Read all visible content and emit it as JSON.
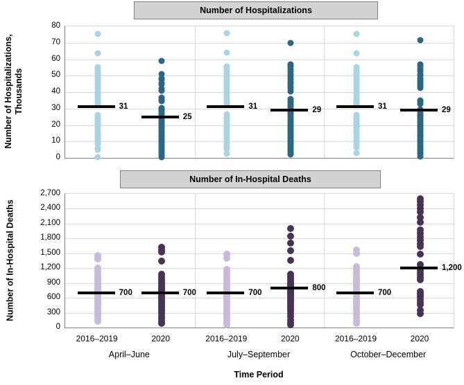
{
  "x_axis": {
    "strip_labels": [
      "2016–2019",
      "2020",
      "2016–2019",
      "2020",
      "2016–2019",
      "2020"
    ],
    "group_labels": [
      "April–June",
      "July–September",
      "October–December"
    ],
    "title": "Time Period"
  },
  "colors": {
    "light_blue": "#a9d4e5",
    "dark_blue": "#2b6783",
    "light_purple": "#c9b9db",
    "dark_purple": "#463355",
    "median_line": "#000000",
    "title_bar_bg": "#d3d3d3",
    "gridline": "#d9d9d9"
  },
  "chart_data": [
    {
      "type": "scatter",
      "subtype": "strip-plot",
      "title": "Number of Hospitalizations",
      "ylabel": "Number of Hospitalizations,\nThousands",
      "ylim": [
        0,
        80
      ],
      "grid": true,
      "legend": false,
      "ytick_values": [
        0,
        10,
        20,
        30,
        40,
        50,
        60,
        70,
        80
      ],
      "ytick_labels": [
        "0",
        "10",
        "20",
        "30",
        "40",
        "50",
        "60",
        "70",
        "80"
      ],
      "strips": [
        {
          "group": "April–June",
          "series": "2016–2019",
          "color": "#a9d4e5",
          "median": 31,
          "median_label": "31",
          "points": [
            75.5,
            63.5,
            55,
            53.5,
            52,
            51,
            49.5,
            48,
            47,
            46,
            44.5,
            43,
            42,
            40.5,
            39,
            38,
            36.5,
            35,
            34,
            33,
            32,
            26,
            25,
            24,
            23,
            22,
            21,
            20,
            19,
            17.5,
            16,
            14.5,
            13,
            12,
            11,
            10,
            8.5,
            6,
            5,
            0.5
          ]
        },
        {
          "group": "April–June",
          "series": "2020",
          "color": "#2b6783",
          "median": 25,
          "median_label": "25",
          "points": [
            59,
            51,
            48.5,
            47.5,
            45.5,
            44.5,
            42,
            41,
            36.5,
            35.5,
            34.5,
            30.5,
            29.5,
            28.5,
            27.5,
            26.5,
            25.5,
            24.5,
            23.5,
            22.5,
            21.5,
            20.5,
            19.5,
            18.5,
            17.5,
            16.5,
            15.5,
            14.5,
            13.5,
            12.5,
            11.5,
            10.5,
            9.5,
            8.5,
            7.5,
            6.5,
            5.5,
            4.5,
            3.5,
            2.5,
            1.5,
            0.5
          ]
        },
        {
          "group": "July–September",
          "series": "2016–2019",
          "color": "#a9d4e5",
          "median": 31,
          "median_label": "31",
          "points": [
            76,
            64,
            55.5,
            54,
            52.5,
            51,
            50,
            48.5,
            47,
            45.5,
            44,
            42.5,
            41,
            39.5,
            38,
            36.5,
            35,
            34,
            33,
            32,
            26.5,
            25,
            23.5,
            22,
            21,
            20,
            19,
            18,
            16.5,
            15,
            14,
            13,
            11.5,
            10,
            9,
            8,
            6.5,
            5.5,
            2.5
          ]
        },
        {
          "group": "July–September",
          "series": "2020",
          "color": "#2b6783",
          "median": 29,
          "median_label": "29",
          "points": [
            70,
            57,
            55.5,
            54,
            52.5,
            51,
            49.5,
            48,
            46.5,
            45,
            43.5,
            42,
            40.5,
            36,
            34.5,
            33.5,
            32.5,
            31.5,
            30.5,
            28,
            27,
            26,
            25,
            24,
            23,
            22,
            21,
            20,
            19,
            18,
            17,
            16,
            15,
            14,
            13,
            12,
            11,
            10,
            9,
            8,
            7,
            6,
            5,
            4,
            3,
            2
          ]
        },
        {
          "group": "October–December",
          "series": "2016–2019",
          "color": "#a9d4e5",
          "median": 31,
          "median_label": "31",
          "points": [
            75.5,
            63.5,
            55,
            53.5,
            52,
            50.5,
            49,
            47.5,
            46,
            44.5,
            43,
            41.5,
            40,
            38.5,
            37,
            35.5,
            34,
            33,
            32,
            26,
            25,
            24,
            23,
            22,
            21,
            20,
            19,
            18,
            17,
            15.5,
            14,
            12.5,
            11,
            9.5,
            8,
            6.5,
            3
          ]
        },
        {
          "group": "October–December",
          "series": "2020",
          "color": "#2b6783",
          "median": 29,
          "median_label": "29",
          "points": [
            71.5,
            57,
            55.5,
            54,
            52.5,
            51,
            50,
            48.5,
            47.5,
            46.5,
            45.5,
            44.5,
            43.5,
            42.5,
            35,
            34,
            33,
            29.5,
            28.5,
            27.5,
            26.5,
            25.5,
            24.5,
            23.5,
            22.5,
            21.5,
            20.5,
            19.5,
            18.5,
            17.5,
            16.5,
            15.5,
            14.5,
            13.5,
            12.5,
            11.5,
            10.5,
            9.5,
            8.5,
            7.5,
            6.5,
            5.5,
            4.5,
            3.5,
            2.5,
            1
          ]
        }
      ]
    },
    {
      "type": "scatter",
      "subtype": "strip-plot",
      "title": "Number of In-Hospital Deaths",
      "ylabel": "Number of In-Hospital Deaths",
      "ylim": [
        0,
        2700
      ],
      "grid": true,
      "legend": false,
      "ytick_values": [
        0,
        300,
        600,
        900,
        1200,
        1500,
        1800,
        2100,
        2400,
        2700
      ],
      "ytick_labels": [
        "0",
        "300",
        "600",
        "900",
        "1,200",
        "1,500",
        "1,800",
        "2,100",
        "2,400",
        "2,700"
      ],
      "strips": [
        {
          "group": "April–June",
          "series": "2016–2019",
          "color": "#c9b9db",
          "median": 700,
          "median_label": "700",
          "points": [
            1450,
            1410,
            1380,
            1200,
            1150,
            1100,
            1050,
            1000,
            960,
            920,
            880,
            840,
            800,
            770,
            740,
            710,
            680,
            650,
            620,
            580,
            540,
            500,
            460,
            420,
            380,
            340,
            300,
            260,
            220,
            170,
            120
          ]
        },
        {
          "group": "April–June",
          "series": "2020",
          "color": "#463355",
          "median": 700,
          "median_label": "700",
          "points": [
            1620,
            1570,
            1520,
            1340,
            1080,
            1020,
            970,
            930,
            890,
            860,
            830,
            800,
            770,
            740,
            710,
            680,
            650,
            620,
            590,
            560,
            520,
            480,
            440,
            400,
            360,
            320,
            280,
            230,
            180,
            130,
            80
          ]
        },
        {
          "group": "July–September",
          "series": "2016–2019",
          "color": "#c9b9db",
          "median": 700,
          "median_label": "700",
          "points": [
            1480,
            1400,
            1180,
            1130,
            1080,
            1030,
            980,
            940,
            900,
            860,
            820,
            790,
            760,
            730,
            700,
            670,
            640,
            610,
            580,
            540,
            500,
            460,
            420,
            380,
            340,
            300,
            250,
            200,
            150,
            100,
            50
          ]
        },
        {
          "group": "July–September",
          "series": "2020",
          "color": "#463355",
          "median": 800,
          "median_label": "800",
          "points": [
            2000,
            1850,
            1700,
            1550,
            1360,
            1080,
            1030,
            990,
            950,
            910,
            880,
            850,
            820,
            790,
            760,
            730,
            700,
            670,
            640,
            610,
            580,
            540,
            500,
            460,
            420,
            380,
            330,
            280,
            220,
            160,
            100,
            50
          ]
        },
        {
          "group": "October–December",
          "series": "2016–2019",
          "color": "#c9b9db",
          "median": 700,
          "median_label": "700",
          "points": [
            1570,
            1500,
            1230,
            1180,
            1130,
            1080,
            1030,
            990,
            950,
            910,
            870,
            830,
            790,
            760,
            730,
            700,
            670,
            630,
            590,
            550,
            510,
            470,
            420,
            370,
            320,
            260,
            200,
            140,
            80
          ]
        },
        {
          "group": "October–December",
          "series": "2020",
          "color": "#463355",
          "median": 1200,
          "median_label": "1,200",
          "points": [
            2600,
            2550,
            2480,
            2410,
            2340,
            2230,
            2130,
            1970,
            1900,
            1830,
            1760,
            1690,
            1640,
            1480,
            1270,
            1160,
            1110,
            1060,
            1010,
            960,
            730,
            690,
            650,
            610,
            560,
            510,
            460,
            350,
            280
          ]
        }
      ]
    }
  ]
}
